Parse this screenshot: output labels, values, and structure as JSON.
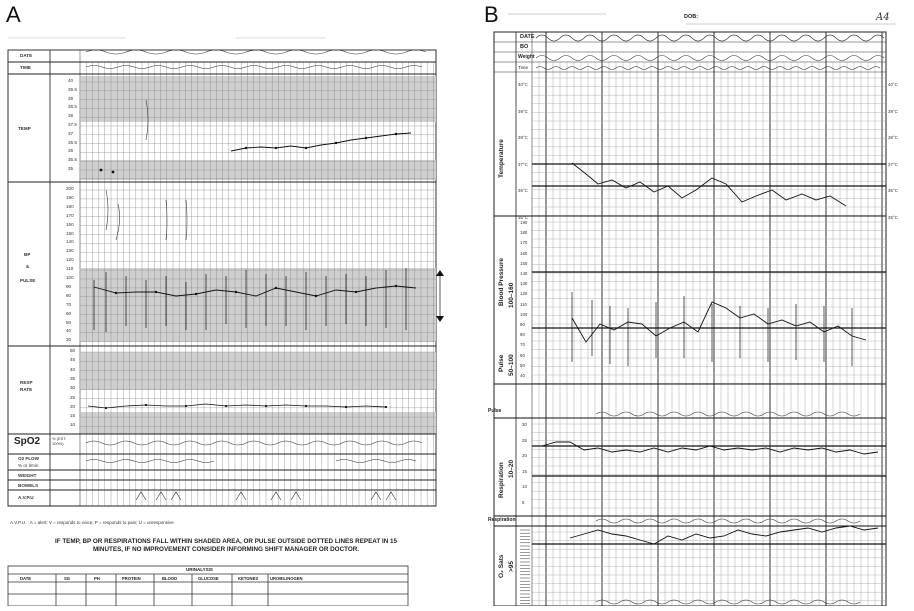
{
  "panels": {
    "a": {
      "letter": "A",
      "rows": {
        "date": "DATE",
        "time": "TIME",
        "temp": "TEMP",
        "bp": "BP",
        "amp": "&",
        "pulse": "PULSE",
        "resp1": "RESP",
        "resp2": "RATE",
        "spo2": "SpO2",
        "spo2_note": "% (EST. 100%)",
        "o2flow1": "O2 FLOW",
        "o2flow2": "% or l/min",
        "weight": "WEIGHT",
        "bowels": "BOWELS",
        "avpu": "A.V.P.U"
      },
      "temp_scale": [
        "40",
        "39.5",
        "39",
        "38.5",
        "38",
        "37.5",
        "37",
        "36.5",
        "36",
        "35.5",
        "35"
      ],
      "pulse_scale": [
        "200",
        "190",
        "180",
        "170",
        "160",
        "150",
        "140",
        "130",
        "120",
        "110",
        "100",
        "90",
        "80",
        "70",
        "60",
        "50",
        "40",
        "30"
      ],
      "resp_scale": [
        "50",
        "45",
        "40",
        "35",
        "30",
        "25",
        "20",
        "15",
        "10"
      ],
      "avpu_legend": "A.V.P.U. : A = alert; V = responds to voice; P = responds to pain; U = unresponsive",
      "warning_line1": "IF TEMP, BP OR RESPIRATIONS FALL WITHIN SHADED AREA, OR PULSE OUTSIDE DOTTED LINES REPEAT IN 15",
      "warning_line2": "MINUTES, IF NO IMPROVEMENT CONSIDER INFORMING SHIFT MANAGER OR DOCTOR.",
      "urinalysis": {
        "title": "URINALYSIS",
        "headers": [
          "DATE",
          "SG",
          "PH",
          "PROTEIN",
          "BLOOD",
          "GLUCOSE",
          "KETONES",
          "UROBILINOGEN"
        ]
      }
    },
    "b": {
      "letter": "B",
      "dob": "DOB:",
      "corner": "A4",
      "hdr_date": "DATE",
      "hdr_bo": "BO",
      "hdr_weight": "Weight",
      "hdr_time": "Time",
      "sections": {
        "temperature": "Temperature",
        "bp": "Blood Pressure",
        "bp_range": "100–160",
        "pulse": "Pulse",
        "pulse_range": "50–100",
        "resp": "Respiration",
        "resp_range": "10–20",
        "o2": "O₂ Sats",
        "o2_range": ">95"
      },
      "row_pulse": "Pulse",
      "row_resp": "Respiration",
      "temp_scale_left": [
        "40°C",
        "39°C",
        "38°C",
        "37°C",
        "36°C",
        "35°C"
      ],
      "temp_scale_right": [
        "40°C",
        "39°C",
        "38°C",
        "37°C",
        "36°C",
        "35°C"
      ],
      "bp_scale": [
        "190",
        "180",
        "170",
        "160",
        "150",
        "140",
        "130",
        "120",
        "110",
        "100",
        "90",
        "80",
        "70",
        "60",
        "50",
        "40"
      ],
      "resp_scale": [
        "30",
        "25",
        "20",
        "15",
        "10",
        "5"
      ]
    }
  }
}
